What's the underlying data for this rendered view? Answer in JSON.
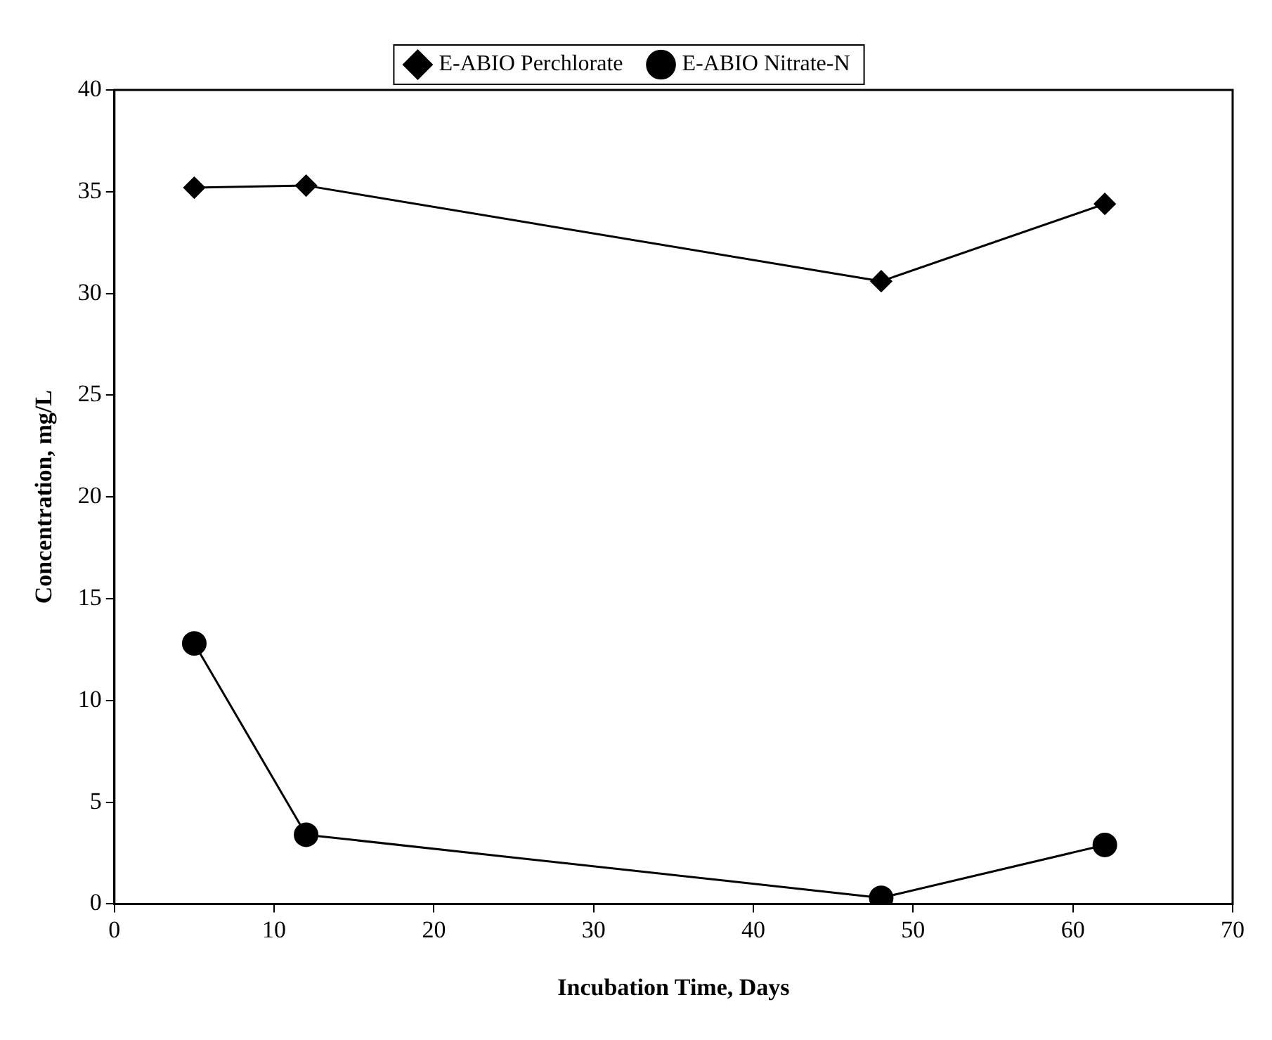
{
  "chart_data": {
    "type": "line",
    "xlabel": "Incubation Time, Days",
    "ylabel": "Concentration, mg/L",
    "x": [
      5,
      12,
      48,
      62
    ],
    "xlim": [
      0,
      70
    ],
    "xticks": [
      0,
      10,
      20,
      30,
      40,
      50,
      60,
      70
    ],
    "ylim": [
      0,
      40
    ],
    "yticks": [
      0,
      5,
      10,
      15,
      20,
      25,
      30,
      35,
      40
    ],
    "grid": false,
    "legend": "top",
    "line_style": "solid",
    "series": [
      {
        "name": "E-ABIO Perchlorate",
        "color": "#000000",
        "marker": "diamond",
        "values": [
          35.2,
          35.3,
          30.6,
          34.4
        ]
      },
      {
        "name": "E-ABIO Nitrate-N",
        "color": "#000000",
        "marker": "circle",
        "values": [
          12.8,
          3.4,
          0.3,
          2.9
        ]
      }
    ]
  }
}
